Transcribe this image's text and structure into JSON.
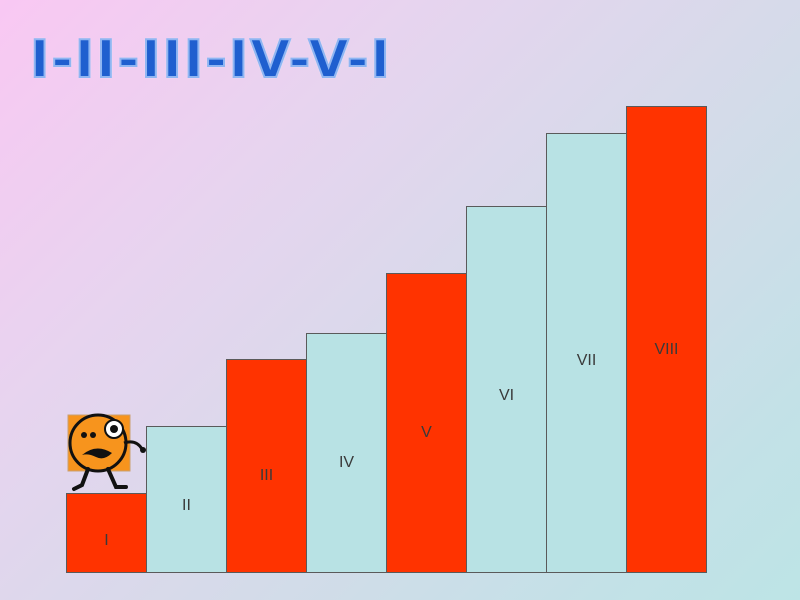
{
  "title": "I-II-III-IV-V-I",
  "colors": {
    "red_step": "#ff3300",
    "light_step": "#b8e2e4",
    "border": "#5a5a5a",
    "title_fill": "#1f5fcf",
    "character_body": "#f7941d"
  },
  "steps": [
    {
      "label": "I",
      "level": 1,
      "color": "red"
    },
    {
      "label": "II",
      "level": 2,
      "color": "light"
    },
    {
      "label": "III",
      "level": 3,
      "color": "red"
    },
    {
      "label": "IV",
      "level": 4,
      "color": "light"
    },
    {
      "label": "V",
      "level": 5,
      "color": "red"
    },
    {
      "label": "VI",
      "level": 6,
      "color": "light"
    },
    {
      "label": "VII",
      "level": 7,
      "color": "light"
    },
    {
      "label": "VIII",
      "level": 8,
      "color": "red"
    }
  ],
  "character": {
    "icon": "worried-walking-face-icon",
    "on_step": "I"
  }
}
